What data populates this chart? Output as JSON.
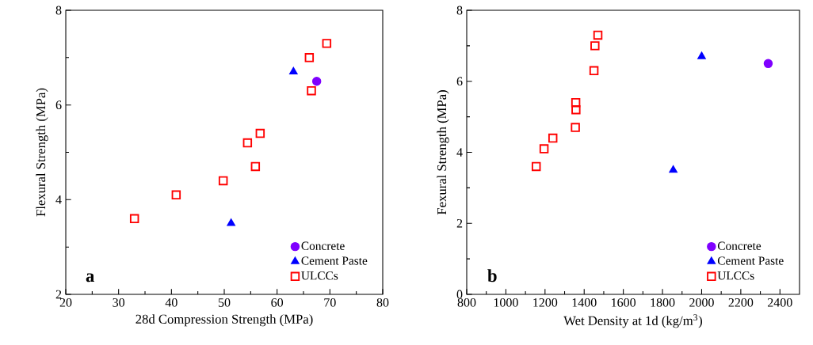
{
  "chart_data": [
    {
      "type": "scatter",
      "xlabel": "28d Compression Strength (MPa)",
      "ylabel": "Flexural Strength (MPa)",
      "xlim": [
        20,
        80
      ],
      "ylim": [
        2,
        8
      ],
      "xticks": [
        20,
        30,
        40,
        50,
        60,
        70,
        80
      ],
      "yticks": [
        2,
        4,
        6,
        8
      ],
      "grid": false,
      "legend": "bottom right",
      "annotations": [
        "a"
      ],
      "series": [
        {
          "name": "Concrete",
          "color": "#7f00ff",
          "marker": "circle",
          "x": [
            67.5
          ],
          "values": [
            6.5
          ]
        },
        {
          "name": "Cement Paste",
          "color": "#0000ff",
          "marker": "triangle",
          "x": [
            51.3,
            63.1
          ],
          "values": [
            3.5,
            6.7
          ]
        },
        {
          "name": "ULCCs",
          "color": "#ff0000",
          "marker": "square",
          "x": [
            33.0,
            40.9,
            49.8,
            54.4,
            55.9,
            56.8,
            66.1,
            66.5,
            69.4
          ],
          "values": [
            3.6,
            4.1,
            4.4,
            5.2,
            4.7,
            5.4,
            7.0,
            6.3,
            7.3
          ]
        }
      ]
    },
    {
      "type": "scatter",
      "xlabel": "Wet Density at 1d (kg/m$^{3}$)",
      "ylabel": "Fexural Strength (MPa)",
      "xlim": [
        800,
        2500
      ],
      "ylim": [
        0,
        8
      ],
      "xticks": [
        800,
        1000,
        1200,
        1400,
        1600,
        1800,
        2000,
        2200,
        2400
      ],
      "yticks": [
        0,
        2,
        4,
        6,
        8
      ],
      "grid": false,
      "legend": "bottom right",
      "annotations": [
        "b"
      ],
      "series": [
        {
          "name": "Concrete",
          "color": "#7f00ff",
          "marker": "circle",
          "x": [
            2340
          ],
          "values": [
            6.5
          ]
        },
        {
          "name": "Cement Paste",
          "color": "#0000ff",
          "marker": "triangle",
          "x": [
            1855,
            2000
          ],
          "values": [
            3.5,
            6.7
          ]
        },
        {
          "name": "ULCCs",
          "color": "#ff0000",
          "marker": "square",
          "x": [
            1155,
            1195,
            1240,
            1355,
            1358,
            1357,
            1450,
            1455,
            1470
          ],
          "values": [
            3.6,
            4.1,
            4.4,
            4.7,
            5.2,
            5.4,
            6.3,
            7.0,
            7.3
          ]
        }
      ]
    }
  ]
}
